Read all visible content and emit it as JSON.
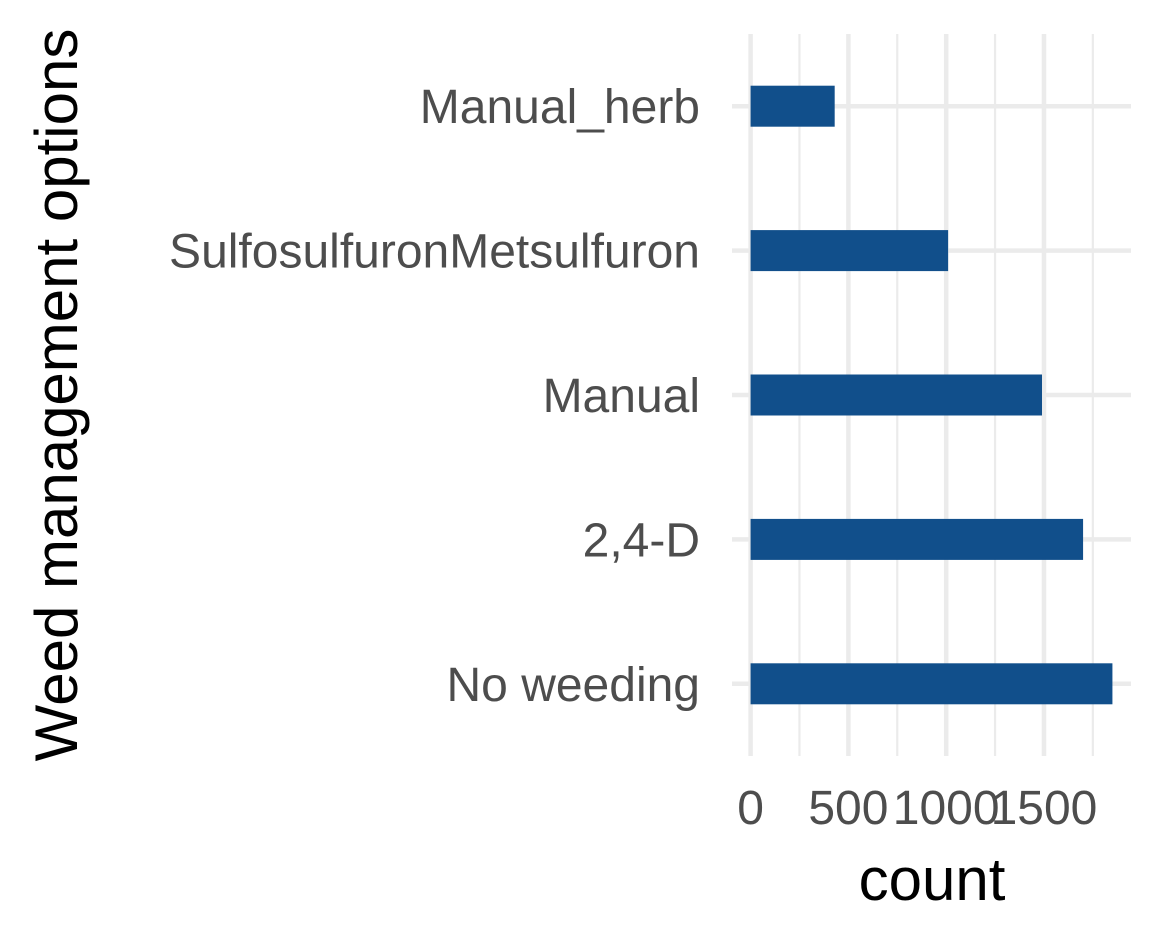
{
  "chart_data": {
    "type": "bar",
    "orientation": "horizontal",
    "categories": [
      "Manual_herb",
      "SulfosulfuronMetsulfuron",
      "Manual",
      "2,4-D",
      "No weeding"
    ],
    "values": [
      430,
      1010,
      1490,
      1700,
      1850
    ],
    "xlabel": "count",
    "ylabel": "Weed management options",
    "x_ticks": [
      0,
      500,
      1000,
      1500
    ],
    "x_tick_labels": [
      "0",
      "500",
      "1000",
      "1500"
    ],
    "xlim": [
      -95,
      1945
    ],
    "bar_color": "#114f8b",
    "grid": true,
    "legend": "none"
  }
}
